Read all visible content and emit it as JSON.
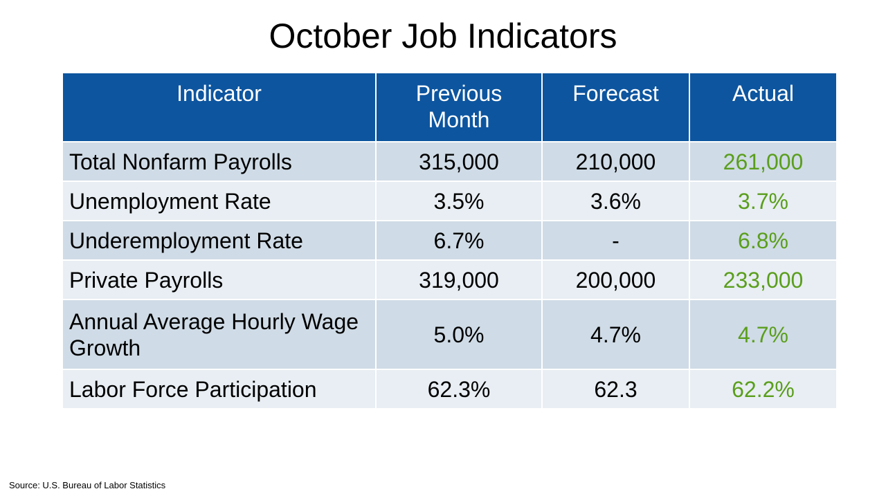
{
  "title": "October Job Indicators",
  "table": {
    "header": [
      "Indicator",
      "Previous Month",
      "Forecast",
      "Actual"
    ],
    "rows": [
      [
        "Total Nonfarm Payrolls",
        "315,000",
        "210,000",
        "261,000"
      ],
      [
        "Unemployment Rate",
        "3.5%",
        "3.6%",
        "3.7%"
      ],
      [
        "Underemployment Rate",
        "6.7%",
        "-",
        "6.8%"
      ],
      [
        "Private Payrolls",
        "319,000",
        "200,000",
        "233,000"
      ],
      [
        "Annual Average Hourly Wage Growth",
        "5.0%",
        "4.7%",
        "4.7%"
      ],
      [
        "Labor Force Participation",
        "62.3%",
        "62.3",
        "62.2%"
      ]
    ]
  },
  "source": "Source: U.S. Bureau of Labor Statistics"
}
